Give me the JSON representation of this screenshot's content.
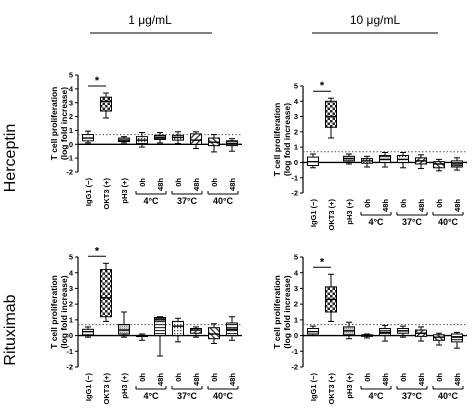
{
  "figure": {
    "column_headers": [
      "1 μg/mL",
      "10 μg/mL"
    ],
    "row_labels": [
      "Herceptin",
      "Rituximab"
    ]
  },
  "chart_data": [
    {
      "type": "box",
      "row": "Herceptin",
      "column": "1 μg/mL",
      "ylabel": "T cell proliferation (log fold increase)",
      "ylim": [
        -2,
        5
      ],
      "yticks": [
        -2,
        -1,
        0,
        1,
        2,
        3,
        4,
        5
      ],
      "reference_line": 0.7,
      "categories": [
        "IgG1 (−)",
        "OKT3 (+)",
        "pH3 (+)",
        "0h",
        "48h",
        "0h",
        "48h",
        "0h",
        "48h"
      ],
      "groups": [
        {
          "label": "4°C",
          "from": 3,
          "to": 4
        },
        {
          "label": "37°C",
          "from": 5,
          "to": 6
        },
        {
          "label": "40°C",
          "from": 7,
          "to": 8
        }
      ],
      "significance": {
        "between": [
          0,
          1
        ],
        "label": "*"
      },
      "boxes": [
        {
          "min": 0.1,
          "q1": 0.25,
          "median": 0.45,
          "q3": 0.7,
          "max": 0.95
        },
        {
          "min": 1.9,
          "q1": 2.4,
          "median": 3.1,
          "q3": 3.4,
          "max": 3.7
        },
        {
          "min": 0.1,
          "q1": 0.2,
          "median": 0.3,
          "q3": 0.45,
          "max": 0.55
        },
        {
          "min": -0.2,
          "q1": 0.05,
          "median": 0.3,
          "q3": 0.55,
          "max": 0.85
        },
        {
          "min": 0.1,
          "q1": 0.35,
          "median": 0.5,
          "q3": 0.65,
          "max": 0.85
        },
        {
          "min": 0.05,
          "q1": 0.3,
          "median": 0.5,
          "q3": 0.65,
          "max": 0.9
        },
        {
          "min": -0.3,
          "q1": 0.0,
          "median": 0.3,
          "q3": 0.75,
          "max": 0.9
        },
        {
          "min": -0.55,
          "q1": -0.1,
          "median": 0.15,
          "q3": 0.45,
          "max": 0.7
        },
        {
          "min": -0.5,
          "q1": -0.1,
          "median": 0.05,
          "q3": 0.25,
          "max": 0.4
        }
      ]
    },
    {
      "type": "box",
      "row": "Herceptin",
      "column": "10 μg/mL",
      "ylabel": "T cell proliferation (log fold increase)",
      "ylim": [
        -2,
        5
      ],
      "yticks": [
        -2,
        -1,
        0,
        1,
        2,
        3,
        4,
        5
      ],
      "reference_line": 0.7,
      "categories": [
        "IgG1 (−)",
        "OKT3 (+)",
        "pH3 (+)",
        "0h",
        "48h",
        "0h",
        "48h",
        "0h",
        "48h"
      ],
      "groups": [
        {
          "label": "4°C",
          "from": 3,
          "to": 4
        },
        {
          "label": "37°C",
          "from": 5,
          "to": 6
        },
        {
          "label": "40°C",
          "from": 7,
          "to": 8
        }
      ],
      "significance": {
        "between": [
          0,
          1
        ],
        "label": "*"
      },
      "boxes": [
        {
          "min": -0.35,
          "q1": -0.2,
          "median": 0.05,
          "q3": 0.35,
          "max": 0.55
        },
        {
          "min": 1.6,
          "q1": 2.3,
          "median": 3.0,
          "q3": 4.0,
          "max": 4.2
        },
        {
          "min": -0.1,
          "q1": 0.1,
          "median": 0.25,
          "q3": 0.4,
          "max": 0.55
        },
        {
          "min": -0.3,
          "q1": -0.05,
          "median": 0.1,
          "q3": 0.25,
          "max": 0.4
        },
        {
          "min": -0.3,
          "q1": 0.0,
          "median": 0.2,
          "q3": 0.45,
          "max": 0.65
        },
        {
          "min": -0.35,
          "q1": 0.0,
          "median": 0.2,
          "q3": 0.45,
          "max": 0.65
        },
        {
          "min": -0.4,
          "q1": -0.1,
          "median": 0.1,
          "q3": 0.3,
          "max": 0.5
        },
        {
          "min": -0.55,
          "q1": -0.35,
          "median": -0.1,
          "q3": 0.05,
          "max": 0.2
        },
        {
          "min": -0.5,
          "q1": -0.3,
          "median": -0.1,
          "q3": 0.1,
          "max": 0.3
        }
      ]
    },
    {
      "type": "box",
      "row": "Rituximab",
      "column": "1 μg/mL",
      "ylabel": "T cell proliferation (log fold increase)",
      "ylim": [
        -2,
        5
      ],
      "yticks": [
        -2,
        -1,
        0,
        1,
        2,
        3,
        4,
        5
      ],
      "reference_line": 0.7,
      "categories": [
        "IgG1 (−)",
        "OKT3 (+)",
        "pH3 (+)",
        "0h",
        "48h",
        "0h",
        "48h",
        "0h",
        "48h"
      ],
      "groups": [
        {
          "label": "4°C",
          "from": 3,
          "to": 4
        },
        {
          "label": "37°C",
          "from": 5,
          "to": 6
        },
        {
          "label": "40°C",
          "from": 7,
          "to": 8
        }
      ],
      "significance": {
        "between": [
          0,
          1
        ],
        "label": "*"
      },
      "boxes": [
        {
          "min": -0.1,
          "q1": 0.05,
          "median": 0.25,
          "q3": 0.4,
          "max": 0.55
        },
        {
          "min": 0.9,
          "q1": 1.2,
          "median": 2.4,
          "q3": 4.2,
          "max": 4.6
        },
        {
          "min": -0.1,
          "q1": 0.1,
          "median": 0.35,
          "q3": 0.7,
          "max": 1.5
        },
        {
          "min": -0.3,
          "q1": 0.0,
          "median": 0.0,
          "q3": 0.0,
          "max": 0.1
        },
        {
          "min": -1.3,
          "q1": 0.0,
          "median": 1.0,
          "q3": 1.15,
          "max": 1.2
        },
        {
          "min": -0.4,
          "q1": 0.0,
          "median": 0.6,
          "q3": 0.9,
          "max": 1.1
        },
        {
          "min": -0.1,
          "q1": 0.15,
          "median": 0.35,
          "q3": 0.45,
          "max": 0.55
        },
        {
          "min": -0.5,
          "q1": -0.2,
          "median": 0.1,
          "q3": 0.5,
          "max": 0.75
        },
        {
          "min": -0.3,
          "q1": 0.0,
          "median": 0.4,
          "q3": 0.8,
          "max": 1.2
        }
      ]
    },
    {
      "type": "box",
      "row": "Rituximab",
      "column": "10 μg/mL",
      "ylabel": "T cell proliferation (log fold increase)",
      "ylim": [
        -2,
        5
      ],
      "yticks": [
        -2,
        -1,
        0,
        1,
        2,
        3,
        4,
        5
      ],
      "reference_line": 0.7,
      "categories": [
        "IgG1 (−)",
        "OKT3 (+)",
        "pH3 (+)",
        "0h",
        "48h",
        "0h",
        "48h",
        "0h",
        "48h"
      ],
      "groups": [
        {
          "label": "4°C",
          "from": 3,
          "to": 4
        },
        {
          "label": "37°C",
          "from": 5,
          "to": 6
        },
        {
          "label": "40°C",
          "from": 7,
          "to": 8
        }
      ],
      "significance": {
        "between": [
          0,
          1
        ],
        "label": "*"
      },
      "boxes": [
        {
          "min": 0.0,
          "q1": 0.1,
          "median": 0.25,
          "q3": 0.45,
          "max": 0.6
        },
        {
          "min": 0.9,
          "q1": 1.5,
          "median": 2.3,
          "q3": 3.1,
          "max": 3.9
        },
        {
          "min": -0.2,
          "q1": 0.05,
          "median": 0.3,
          "q3": 0.55,
          "max": 0.85
        },
        {
          "min": -0.15,
          "q1": -0.05,
          "median": 0.0,
          "q3": 0.05,
          "max": 0.1
        },
        {
          "min": -0.35,
          "q1": 0.0,
          "median": 0.2,
          "q3": 0.45,
          "max": 0.65
        },
        {
          "min": -0.1,
          "q1": 0.15,
          "median": 0.3,
          "q3": 0.45,
          "max": 0.6
        },
        {
          "min": -0.35,
          "q1": -0.05,
          "median": 0.15,
          "q3": 0.35,
          "max": 0.55
        },
        {
          "min": -0.6,
          "q1": -0.3,
          "median": -0.1,
          "q3": 0.05,
          "max": 0.15
        },
        {
          "min": -0.8,
          "q1": -0.4,
          "median": -0.1,
          "q3": 0.1,
          "max": 0.2
        }
      ]
    }
  ]
}
